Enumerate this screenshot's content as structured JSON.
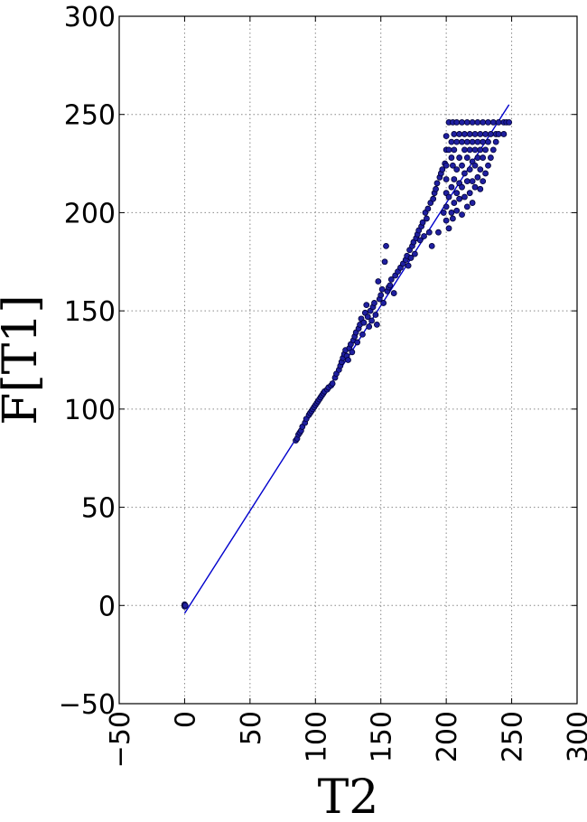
{
  "chart_data": {
    "type": "scatter",
    "title": "",
    "xlabel": "T2",
    "ylabel": "F[T1]",
    "xlim": [
      -50,
      300
    ],
    "ylim": [
      -50,
      300
    ],
    "grid": true,
    "x_ticks": [
      -50,
      0,
      50,
      100,
      150,
      200,
      250,
      300
    ],
    "y_ticks": [
      -50,
      0,
      50,
      100,
      150,
      200,
      250,
      300
    ],
    "x_tick_labels": [
      "−50",
      "0",
      "50",
      "100",
      "150",
      "200",
      "250",
      "300"
    ],
    "y_tick_labels": [
      "−50",
      "0",
      "50",
      "100",
      "150",
      "200",
      "250",
      "300"
    ],
    "series": [
      {
        "type": "scatter",
        "color": "#1f1fa0",
        "points": [
          [
            0,
            0
          ],
          [
            0,
            0.5
          ],
          [
            0,
            -0.5
          ],
          [
            0.5,
            0
          ],
          [
            85,
            84
          ],
          [
            86,
            85
          ],
          [
            87,
            87
          ],
          [
            88,
            88
          ],
          [
            89,
            89
          ],
          [
            90,
            91
          ],
          [
            92,
            93
          ],
          [
            93,
            95
          ],
          [
            95,
            97
          ],
          [
            96,
            98
          ],
          [
            97,
            99
          ],
          [
            98,
            100
          ],
          [
            99,
            101
          ],
          [
            100,
            102
          ],
          [
            101,
            103
          ],
          [
            102,
            104
          ],
          [
            103,
            105
          ],
          [
            104,
            106
          ],
          [
            105,
            107
          ],
          [
            106,
            108
          ],
          [
            107,
            109
          ],
          [
            109,
            110
          ],
          [
            110,
            111
          ],
          [
            112,
            112
          ],
          [
            113,
            113
          ],
          [
            115,
            116
          ],
          [
            116,
            118
          ],
          [
            118,
            120
          ],
          [
            119,
            122
          ],
          [
            120,
            124
          ],
          [
            121,
            126
          ],
          [
            122,
            128
          ],
          [
            123,
            130
          ],
          [
            124,
            127
          ],
          [
            125,
            125
          ],
          [
            126,
            131
          ],
          [
            127,
            133
          ],
          [
            128,
            129
          ],
          [
            129,
            135
          ],
          [
            130,
            137
          ],
          [
            131,
            139
          ],
          [
            132,
            134
          ],
          [
            133,
            141
          ],
          [
            134,
            143
          ],
          [
            135,
            146
          ],
          [
            136,
            138
          ],
          [
            137,
            144
          ],
          [
            138,
            149
          ],
          [
            139,
            153
          ],
          [
            140,
            147
          ],
          [
            141,
            142
          ],
          [
            142,
            150
          ],
          [
            143,
            145
          ],
          [
            144,
            152
          ],
          [
            145,
            154
          ],
          [
            146,
            148
          ],
          [
            147,
            143
          ],
          [
            148,
            165
          ],
          [
            149,
            156
          ],
          [
            150,
            158
          ],
          [
            151,
            161
          ],
          [
            152,
            154
          ],
          [
            153,
            175
          ],
          [
            154,
            183
          ],
          [
            155,
            160
          ],
          [
            156,
            162
          ],
          [
            157,
            163
          ],
          [
            158,
            166
          ],
          [
            160,
            159
          ],
          [
            161,
            168
          ],
          [
            163,
            170
          ],
          [
            165,
            172
          ],
          [
            167,
            174
          ],
          [
            169,
            176
          ],
          [
            170,
            178
          ],
          [
            171,
            173
          ],
          [
            172,
            181
          ],
          [
            173,
            177
          ],
          [
            174,
            183
          ],
          [
            175,
            185
          ],
          [
            176,
            179
          ],
          [
            177,
            187
          ],
          [
            178,
            189
          ],
          [
            179,
            191
          ],
          [
            180,
            186
          ],
          [
            181,
            193
          ],
          [
            182,
            195
          ],
          [
            183,
            188
          ],
          [
            184,
            200
          ],
          [
            185,
            197
          ],
          [
            186,
            202
          ],
          [
            187,
            190
          ],
          [
            188,
            205
          ],
          [
            189,
            183
          ],
          [
            190,
            207
          ],
          [
            191,
            210
          ],
          [
            192,
            212
          ],
          [
            193,
            215
          ],
          [
            194,
            190
          ],
          [
            195,
            218
          ],
          [
            196,
            220
          ],
          [
            197,
            222
          ],
          [
            198,
            200
          ],
          [
            199,
            225
          ],
          [
            200,
            196
          ],
          [
            200,
            203
          ],
          [
            200,
            210
          ],
          [
            200,
            217
          ],
          [
            200,
            224
          ],
          [
            200,
            232
          ],
          [
            200,
            239
          ],
          [
            202,
            192
          ],
          [
            202,
            208
          ],
          [
            202,
            232
          ],
          [
            202,
            246
          ],
          [
            204,
            200
          ],
          [
            204,
            213
          ],
          [
            204,
            228
          ],
          [
            204,
            236
          ],
          [
            205,
            197
          ],
          [
            205,
            224
          ],
          [
            205,
            246
          ],
          [
            206,
            205
          ],
          [
            206,
            217
          ],
          [
            206,
            232
          ],
          [
            206,
            240
          ],
          [
            208,
            201
          ],
          [
            208,
            210
          ],
          [
            208,
            222
          ],
          [
            208,
            236
          ],
          [
            208,
            246
          ],
          [
            210,
            207
          ],
          [
            210,
            215
          ],
          [
            210,
            228
          ],
          [
            210,
            240
          ],
          [
            212,
            199
          ],
          [
            212,
            213
          ],
          [
            212,
            224
          ],
          [
            212,
            236
          ],
          [
            212,
            246
          ],
          [
            214,
            208
          ],
          [
            214,
            220
          ],
          [
            214,
            232
          ],
          [
            214,
            240
          ],
          [
            216,
            203
          ],
          [
            216,
            216
          ],
          [
            216,
            228
          ],
          [
            216,
            236
          ],
          [
            216,
            246
          ],
          [
            218,
            210
          ],
          [
            218,
            222
          ],
          [
            218,
            232
          ],
          [
            218,
            240
          ],
          [
            220,
            205
          ],
          [
            220,
            216
          ],
          [
            220,
            226
          ],
          [
            220,
            236
          ],
          [
            220,
            246
          ],
          [
            222,
            213
          ],
          [
            222,
            224
          ],
          [
            222,
            232
          ],
          [
            222,
            240
          ],
          [
            224,
            218
          ],
          [
            224,
            228
          ],
          [
            224,
            236
          ],
          [
            224,
            246
          ],
          [
            226,
            212
          ],
          [
            226,
            222
          ],
          [
            226,
            232
          ],
          [
            226,
            240
          ],
          [
            228,
            216
          ],
          [
            228,
            228
          ],
          [
            228,
            236
          ],
          [
            228,
            246
          ],
          [
            230,
            220
          ],
          [
            230,
            232
          ],
          [
            230,
            240
          ],
          [
            232,
            224
          ],
          [
            232,
            236
          ],
          [
            232,
            246
          ],
          [
            234,
            228
          ],
          [
            234,
            240
          ],
          [
            236,
            232
          ],
          [
            236,
            246
          ],
          [
            238,
            236
          ],
          [
            238,
            240
          ],
          [
            240,
            240
          ],
          [
            240,
            246
          ],
          [
            244,
            240
          ],
          [
            244,
            246
          ],
          [
            246,
            246
          ],
          [
            248,
            246
          ]
        ]
      },
      {
        "type": "line",
        "color": "#0000cc",
        "points": [
          [
            0,
            -4
          ],
          [
            248,
            255
          ]
        ]
      }
    ]
  }
}
